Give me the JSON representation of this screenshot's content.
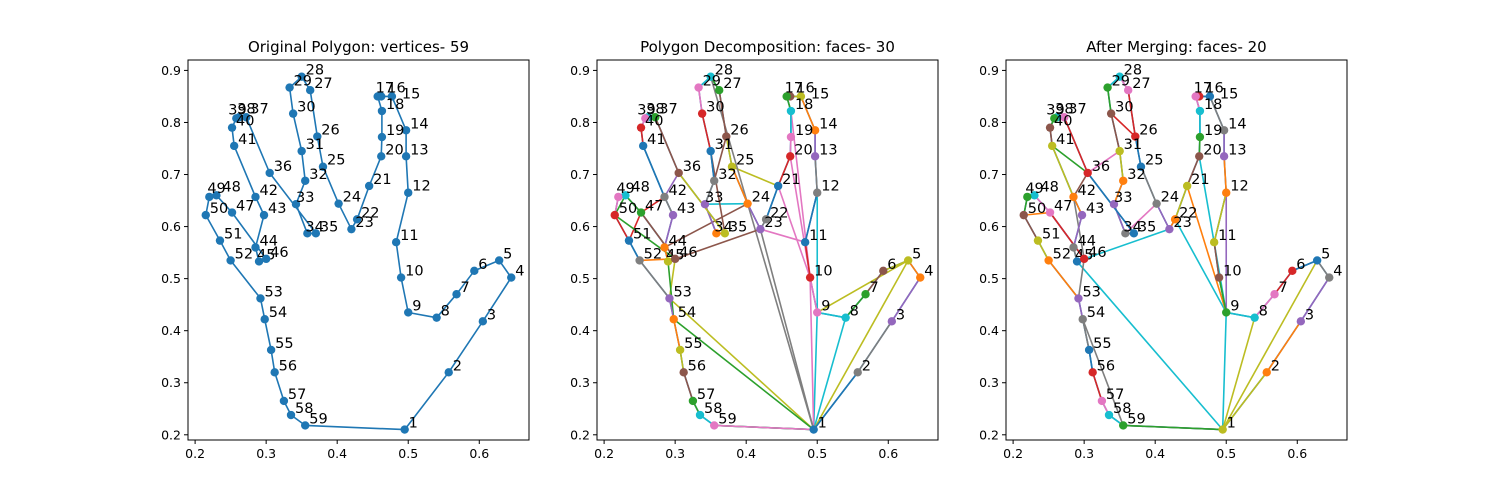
{
  "chart_data": [
    {
      "type": "line",
      "title": "Original Polygon: vertices- 59",
      "xlim": [
        0.19,
        0.67
      ],
      "ylim": [
        0.19,
        0.92
      ],
      "xticks": [
        "0.2",
        "0.3",
        "0.4",
        "0.5",
        "0.6"
      ],
      "yticks": [
        "0.2",
        "0.3",
        "0.4",
        "0.5",
        "0.6",
        "0.7",
        "0.8",
        "0.9"
      ],
      "grid": false
    },
    {
      "type": "line",
      "title": "Polygon Decomposition: faces- 30",
      "xlim": [
        0.19,
        0.67
      ],
      "ylim": [
        0.19,
        0.92
      ],
      "xticks": [
        "0.2",
        "0.3",
        "0.4",
        "0.5",
        "0.6"
      ],
      "yticks": [
        "0.2",
        "0.3",
        "0.4",
        "0.5",
        "0.6",
        "0.7",
        "0.8",
        "0.9"
      ],
      "grid": false
    },
    {
      "type": "line",
      "title": "After Merging: faces- 20",
      "xlim": [
        0.19,
        0.67
      ],
      "ylim": [
        0.19,
        0.92
      ],
      "xticks": [
        "0.2",
        "0.3",
        "0.4",
        "0.5",
        "0.6"
      ],
      "yticks": [
        "0.2",
        "0.3",
        "0.4",
        "0.5",
        "0.6",
        "0.7",
        "0.8",
        "0.9"
      ],
      "grid": false
    }
  ],
  "vertices": [
    [
      0.495,
      0.21
    ],
    [
      0.557,
      0.32
    ],
    [
      0.605,
      0.418
    ],
    [
      0.645,
      0.502
    ],
    [
      0.628,
      0.535
    ],
    [
      0.593,
      0.515
    ],
    [
      0.568,
      0.47
    ],
    [
      0.54,
      0.425
    ],
    [
      0.5,
      0.435
    ],
    [
      0.49,
      0.502
    ],
    [
      0.483,
      0.57
    ],
    [
      0.5,
      0.665
    ],
    [
      0.497,
      0.735
    ],
    [
      0.497,
      0.785
    ],
    [
      0.477,
      0.85
    ],
    [
      0.462,
      0.85
    ],
    [
      0.457,
      0.85
    ],
    [
      0.463,
      0.822
    ],
    [
      0.463,
      0.772
    ],
    [
      0.462,
      0.735
    ],
    [
      0.445,
      0.678
    ],
    [
      0.428,
      0.614
    ],
    [
      0.42,
      0.595
    ],
    [
      0.402,
      0.644
    ],
    [
      0.38,
      0.715
    ],
    [
      0.372,
      0.773
    ],
    [
      0.362,
      0.862
    ],
    [
      0.35,
      0.888
    ],
    [
      0.333,
      0.867
    ],
    [
      0.338,
      0.817
    ],
    [
      0.35,
      0.745
    ],
    [
      0.355,
      0.688
    ],
    [
      0.342,
      0.643
    ],
    [
      0.358,
      0.587
    ],
    [
      0.37,
      0.587
    ],
    [
      0.305,
      0.703
    ],
    [
      0.272,
      0.81
    ],
    [
      0.262,
      0.81
    ],
    [
      0.258,
      0.808
    ],
    [
      0.252,
      0.79
    ],
    [
      0.255,
      0.755
    ],
    [
      0.285,
      0.657
    ],
    [
      0.297,
      0.622
    ],
    [
      0.285,
      0.56
    ],
    [
      0.29,
      0.533
    ],
    [
      0.3,
      0.538
    ],
    [
      0.252,
      0.627
    ],
    [
      0.23,
      0.66
    ],
    [
      0.22,
      0.657
    ],
    [
      0.215,
      0.622
    ],
    [
      0.235,
      0.573
    ],
    [
      0.25,
      0.535
    ],
    [
      0.292,
      0.462
    ],
    [
      0.298,
      0.422
    ],
    [
      0.307,
      0.363
    ],
    [
      0.312,
      0.32
    ],
    [
      0.325,
      0.265
    ],
    [
      0.335,
      0.238
    ],
    [
      0.355,
      0.218
    ]
  ],
  "decomposition_edges": [
    {
      "a": 1,
      "b": 9,
      "color": "#17becf"
    },
    {
      "a": 1,
      "b": 8,
      "color": "#17becf"
    },
    {
      "a": 1,
      "b": 10,
      "color": "#e377c2"
    },
    {
      "a": 1,
      "b": 23,
      "color": "#7f7f7f"
    },
    {
      "a": 1,
      "b": 24,
      "color": "#7f7f7f"
    },
    {
      "a": 1,
      "b": 53,
      "color": "#bcbd22"
    },
    {
      "a": 1,
      "b": 54,
      "color": "#2ca02c"
    },
    {
      "a": 1,
      "b": 59,
      "color": "#2ca02c"
    },
    {
      "a": 1,
      "b": 5,
      "color": "#bcbd22"
    },
    {
      "a": 5,
      "b": 9,
      "color": "#bcbd22"
    },
    {
      "a": 23,
      "b": 11,
      "color": "#e377c2"
    },
    {
      "a": 23,
      "b": 45,
      "color": "#8c564b"
    },
    {
      "a": 24,
      "b": 44,
      "color": "#8c564b"
    },
    {
      "a": 24,
      "b": 33,
      "color": "#17becf"
    },
    {
      "a": 21,
      "b": 10,
      "color": "#e377c2"
    },
    {
      "a": 20,
      "b": 10,
      "color": "#e377c2"
    },
    {
      "a": 25,
      "b": 21,
      "color": "#bcbd22"
    },
    {
      "a": 26,
      "b": 32,
      "color": "#8c564b"
    },
    {
      "a": 31,
      "b": 35,
      "color": "#8c564b"
    },
    {
      "a": 36,
      "b": 42,
      "color": "#9467bd"
    },
    {
      "a": 47,
      "b": 42,
      "color": "#d62728"
    },
    {
      "a": 47,
      "b": 51,
      "color": "#d62728"
    },
    {
      "a": 46,
      "b": 53,
      "color": "#bcbd22"
    },
    {
      "a": 50,
      "b": 46,
      "color": "#2ca02c"
    },
    {
      "a": 48,
      "b": 50,
      "color": "#2ca02c"
    },
    {
      "a": 45,
      "b": 54,
      "color": "#2ca02c"
    },
    {
      "a": 52,
      "b": 46,
      "color": "#ff7f0e"
    },
    {
      "a": 12,
      "b": 9,
      "color": "#17becf"
    },
    {
      "a": 18,
      "b": 10,
      "color": "#e377c2"
    },
    {
      "a": 28,
      "b": 24,
      "color": "#7f7f7f"
    }
  ],
  "merging_edges": [
    {
      "a": 1,
      "b": 9,
      "color": "#17becf"
    },
    {
      "a": 1,
      "b": 8,
      "color": "#bcbd22"
    },
    {
      "a": 1,
      "b": 5,
      "color": "#bcbd22"
    },
    {
      "a": 1,
      "b": 45,
      "color": "#17becf"
    },
    {
      "a": 1,
      "b": 59,
      "color": "#7f7f7f"
    },
    {
      "a": 9,
      "b": 22,
      "color": "#17becf"
    },
    {
      "a": 9,
      "b": 12,
      "color": "#9467bd"
    },
    {
      "a": 9,
      "b": 21,
      "color": "#ff7f0e"
    },
    {
      "a": 9,
      "b": 20,
      "color": "#17becf"
    },
    {
      "a": 23,
      "b": 45,
      "color": "#17becf"
    },
    {
      "a": 24,
      "b": 34,
      "color": "#e377c2"
    },
    {
      "a": 31,
      "b": 36,
      "color": "#e377c2"
    },
    {
      "a": 36,
      "b": 42,
      "color": "#8c564b"
    },
    {
      "a": 42,
      "b": 46,
      "color": "#7f7f7f"
    },
    {
      "a": 41,
      "b": 36,
      "color": "#2ca02c"
    },
    {
      "a": 50,
      "b": 47,
      "color": "#ff7f0e"
    },
    {
      "a": 47,
      "b": 46,
      "color": "#9467bd"
    },
    {
      "a": 30,
      "b": 26,
      "color": "#d62728"
    },
    {
      "a": 53,
      "b": 46,
      "color": "#7f7f7f"
    },
    {
      "a": 54,
      "b": 59,
      "color": "#7f7f7f"
    }
  ],
  "colors": {
    "main_series": "#1f77b4",
    "palette": [
      "#1f77b4",
      "#ff7f0e",
      "#2ca02c",
      "#d62728",
      "#9467bd",
      "#8c564b",
      "#e377c2",
      "#7f7f7f",
      "#bcbd22",
      "#17becf"
    ]
  }
}
